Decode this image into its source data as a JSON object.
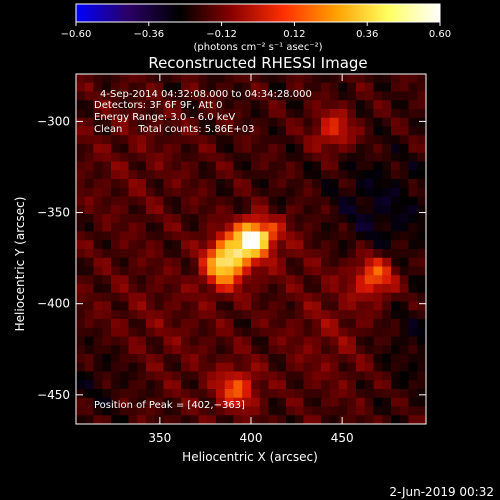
{
  "chart_data": {
    "type": "heatmap",
    "title": "Reconstructed RHESSI Image",
    "xlabel": "Heliocentric X (arcsec)",
    "ylabel": "Heliocentric Y (arcsec)",
    "xlim": [
      304,
      496
    ],
    "ylim": [
      -466,
      -274
    ],
    "x_ticks": [
      350,
      400,
      450
    ],
    "x_tick_labels": [
      "350",
      "400",
      "450"
    ],
    "y_ticks": [
      -300,
      -350,
      -400,
      -450
    ],
    "y_tick_labels": [
      "−300",
      "−350",
      "−400",
      "−450"
    ],
    "colorbar": {
      "min": -0.6,
      "max": 0.6,
      "ticks": [
        -0.6,
        -0.36,
        -0.12,
        0.12,
        0.36,
        0.6
      ],
      "tick_labels": [
        "−0.60",
        "−0.36",
        "−0.12",
        "0.12",
        "0.36",
        "0.60"
      ],
      "unit_label": "(photons cm⁻² s⁻¹ asec⁻²)",
      "colors": [
        "#0000ff",
        "#2a0066",
        "#000000",
        "#8a0000",
        "#ff3000",
        "#ffa000",
        "#ffff60",
        "#ffffff"
      ]
    },
    "annotations": [
      "4-Sep-2014 04:32:08.000 to 04:34:28.000",
      "Detectors: 3F 6F 9F, Att 0",
      "Energy Range: 3.0 – 6.0 keV",
      "Clean     Total counts: 5.86E+03",
      "Position of Peak = [402,−363]"
    ],
    "peak": {
      "x": 402,
      "y": -363,
      "value": 0.6
    },
    "secondary_sources": [
      {
        "x": 388,
        "y": -372,
        "value": 0.4
      },
      {
        "x": 468,
        "y": -385,
        "value": 0.34
      },
      {
        "x": 392,
        "y": -447,
        "value": 0.3
      },
      {
        "x": 384,
        "y": -382,
        "value": 0.28
      },
      {
        "x": 445,
        "y": -305,
        "value": 0.25
      }
    ]
  },
  "footer": {
    "date": "2-Jun-2019 00:32"
  }
}
